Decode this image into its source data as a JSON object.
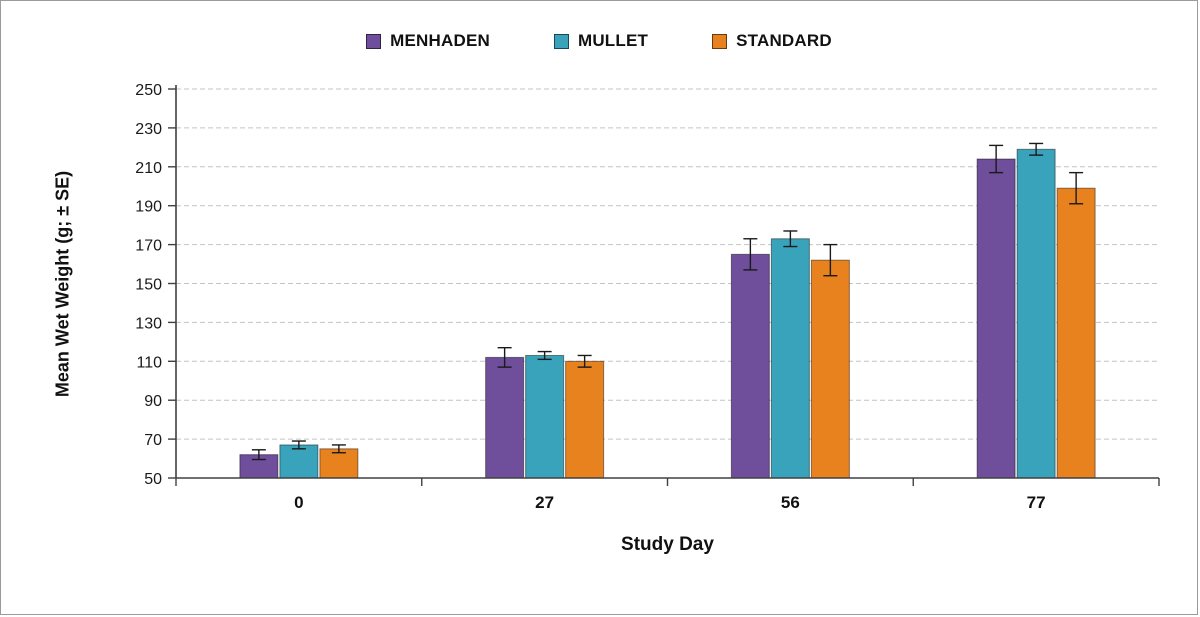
{
  "chart_data": {
    "type": "bar",
    "title": "",
    "xlabel": "Study Day",
    "ylabel": "Mean Wet Weight (g; ± SE)",
    "categories": [
      "0",
      "27",
      "56",
      "77"
    ],
    "series": [
      {
        "name": "MENHADEN",
        "color": "#6f4e9c",
        "values": [
          62,
          112,
          165,
          214
        ],
        "errors": [
          2.5,
          5,
          8,
          7
        ]
      },
      {
        "name": "MULLET",
        "color": "#3aa3bc",
        "values": [
          67,
          113,
          173,
          219
        ],
        "errors": [
          2,
          2,
          4,
          3
        ]
      },
      {
        "name": "STANDARD",
        "color": "#e8821f",
        "values": [
          65,
          110,
          162,
          199
        ],
        "errors": [
          2,
          3,
          8,
          8
        ]
      }
    ],
    "ylim": [
      50,
      250
    ],
    "ytick_step": 20,
    "grid": "horizontal-dashed",
    "legend_position": "top",
    "error_bar_color": "#1a1a1a",
    "axis_color": "#404040",
    "gridline_color": "#c3c3c3"
  }
}
